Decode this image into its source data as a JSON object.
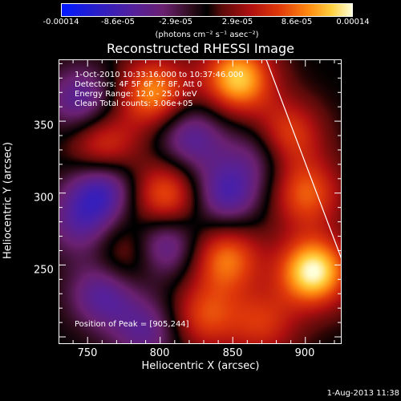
{
  "colorbar": {
    "ticks": [
      "-0.00014",
      "-8.6e-05",
      "-2.9e-05",
      "2.9e-05",
      "8.6e-05",
      "0.00014"
    ],
    "unit": "(photons cm⁻² s⁻¹ asec⁻²)"
  },
  "annotations": {
    "time": "1-Oct-2010 10:33:16.000 to 10:37:46.000",
    "detectors": "Detectors: 4F 5F 6F 7F 8F, Att 0",
    "energy": "Energy Range: 12.0 - 25.0 keV",
    "clean": "Clean    Total counts: 3.06e+05",
    "peak": "Position of Peak = [905,244]"
  },
  "footer": {
    "date": "1-Aug-2013 11:38"
  },
  "chart_data": {
    "type": "heatmap",
    "title": "Reconstructed RHESSI Image",
    "xlabel": "Heliocentric X (arcsec)",
    "ylabel": "Heliocentric Y (arcsec)",
    "xlim": [
      730,
      925
    ],
    "ylim": [
      195,
      393
    ],
    "xticks": [
      750,
      800,
      850,
      900
    ],
    "yticks": [
      250,
      300,
      350
    ],
    "value_range": [
      -0.00014,
      0.00014
    ],
    "peak_position": [
      905,
      244
    ],
    "limb_line": [
      [
        873,
        393
      ],
      [
        925,
        254
      ]
    ],
    "blobs": [
      {
        "x": 905,
        "y": 246,
        "value": 0.00014
      },
      {
        "x": 853,
        "y": 380,
        "value": 0.00012
      },
      {
        "x": 795,
        "y": 370,
        "value": 0.0001
      },
      {
        "x": 885,
        "y": 340,
        "value": 9e-05
      },
      {
        "x": 803,
        "y": 298,
        "value": 9e-05
      },
      {
        "x": 845,
        "y": 255,
        "value": 9e-05
      },
      {
        "x": 760,
        "y": 332,
        "value": 8e-05
      },
      {
        "x": 900,
        "y": 300,
        "value": 8e-05
      },
      {
        "x": 830,
        "y": 215,
        "value": 7e-05
      },
      {
        "x": 780,
        "y": 260,
        "value": 6e-05
      },
      {
        "x": 870,
        "y": 210,
        "value": 6e-05
      },
      {
        "x": 760,
        "y": 305,
        "value": -9e-05
      },
      {
        "x": 800,
        "y": 265,
        "value": -9e-05
      },
      {
        "x": 845,
        "y": 300,
        "value": -8e-05
      },
      {
        "x": 745,
        "y": 365,
        "value": -7e-05
      },
      {
        "x": 820,
        "y": 340,
        "value": -7e-05
      },
      {
        "x": 760,
        "y": 230,
        "value": -7e-05
      },
      {
        "x": 870,
        "y": 330,
        "value": -6e-05
      },
      {
        "x": 790,
        "y": 205,
        "value": -6e-05
      },
      {
        "x": 745,
        "y": 280,
        "value": -6e-05
      }
    ]
  }
}
